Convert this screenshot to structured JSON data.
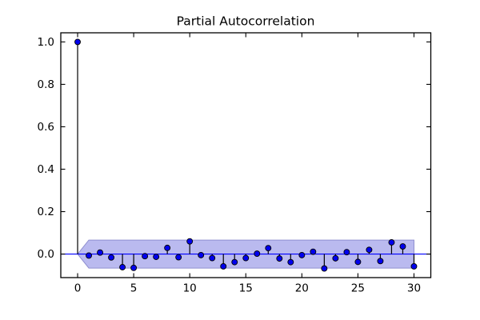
{
  "figure": {
    "background": "#ffffff"
  },
  "chart_data": {
    "type": "stem",
    "title": "Partial Autocorrelation",
    "xlabel": "",
    "ylabel": "",
    "x": [
      0,
      1,
      2,
      3,
      4,
      5,
      6,
      7,
      8,
      9,
      10,
      11,
      12,
      13,
      14,
      15,
      16,
      17,
      18,
      19,
      20,
      21,
      22,
      23,
      24,
      25,
      26,
      27,
      28,
      29,
      30
    ],
    "values": [
      1.0,
      -0.007,
      0.007,
      -0.016,
      -0.062,
      -0.065,
      -0.01,
      -0.013,
      0.029,
      -0.015,
      0.06,
      -0.005,
      -0.019,
      -0.058,
      -0.038,
      -0.019,
      0.002,
      0.028,
      -0.021,
      -0.038,
      -0.005,
      0.011,
      -0.068,
      -0.02,
      0.009,
      -0.037,
      0.02,
      -0.033,
      0.055,
      0.036,
      -0.058
    ],
    "confidence_interval": {
      "upper": 0.066,
      "lower": -0.066,
      "taper_to_zero_at_lag": 0,
      "full_width_from_lag": 1,
      "end_lag": 30
    },
    "zero_line": 0.0,
    "xticks": [
      0,
      5,
      10,
      15,
      20,
      25,
      30
    ],
    "xtick_labels": [
      "0",
      "5",
      "10",
      "15",
      "20",
      "25",
      "30"
    ],
    "yticks": [
      0.0,
      0.2,
      0.4,
      0.6,
      0.8,
      1.0
    ],
    "ytick_labels": [
      "0.0",
      "0.2",
      "0.4",
      "0.6",
      "0.8",
      "1.0"
    ],
    "xlim": [
      -1.5,
      31.5
    ],
    "ylim": [
      -0.111,
      1.043
    ],
    "grid": false,
    "legend": null,
    "colors": {
      "marker_fill": "#0000ee",
      "marker_edge": "#000000",
      "stem": "#000000",
      "zero_line": "#0000ff",
      "band_fill": "#babaef",
      "band_edge": "#8f8fd0",
      "spine": "#000000",
      "background": "#ffffff"
    }
  }
}
